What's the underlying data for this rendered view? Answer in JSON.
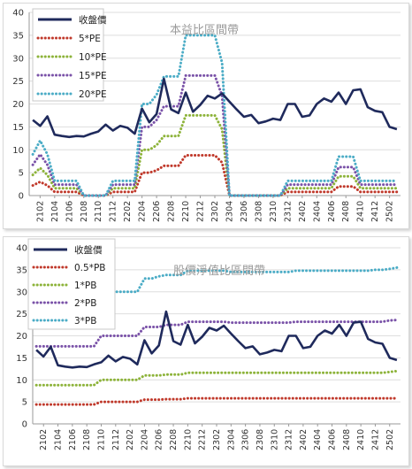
{
  "colors": {
    "close": "#1f2a5c",
    "band1": "#c0392b",
    "band2": "#8db33a",
    "band3": "#7a52a8",
    "band4": "#4bacc6",
    "grid": "#dedede",
    "axis": "#9a9a9a"
  },
  "chart_data": [
    {
      "type": "line",
      "title": "本益比區間帶",
      "xlabel": "",
      "ylabel": "",
      "ylim": [
        0,
        40
      ],
      "yticks": [
        0,
        5,
        10,
        15,
        20,
        25,
        30,
        35,
        40
      ],
      "xtick_labels": [
        "2102",
        "2104",
        "2106",
        "2108",
        "2110",
        "2112",
        "2202",
        "2204",
        "2206",
        "2208",
        "2210",
        "2212",
        "2302",
        "2304",
        "2306",
        "2308",
        "2310",
        "2312",
        "2402",
        "2404",
        "2406",
        "2408",
        "2410",
        "2412",
        "2502"
      ],
      "grid": true,
      "legend_position": "top-left",
      "x": [
        "2101",
        "2102",
        "2103",
        "2104",
        "2105",
        "2106",
        "2107",
        "2108",
        "2109",
        "2110",
        "2111",
        "2112",
        "2201",
        "2202",
        "2203",
        "2204",
        "2205",
        "2206",
        "2207",
        "2208",
        "2209",
        "2210",
        "2211",
        "2212",
        "2301",
        "2302",
        "2303",
        "2304",
        "2305",
        "2306",
        "2307",
        "2308",
        "2309",
        "2310",
        "2311",
        "2312",
        "2401",
        "2402",
        "2403",
        "2404",
        "2405",
        "2406",
        "2407",
        "2408",
        "2409",
        "2410",
        "2411",
        "2412",
        "2501",
        "2502",
        "2503"
      ],
      "series": [
        {
          "name": "收盤價",
          "style": "solid",
          "values": [
            16.5,
            15.2,
            17.3,
            13.3,
            13.0,
            12.8,
            13.0,
            12.9,
            13.5,
            14.0,
            15.5,
            14.2,
            15.2,
            14.8,
            13.5,
            19.0,
            16.0,
            17.8,
            25.5,
            18.8,
            18.0,
            22.5,
            18.3,
            19.8,
            21.8,
            21.2,
            22.3,
            20.5,
            18.8,
            17.2,
            17.6,
            15.8,
            16.2,
            16.8,
            16.5,
            20.0,
            20.0,
            17.2,
            17.5,
            20.0,
            21.2,
            20.5,
            22.5,
            20.0,
            23.0,
            23.2,
            19.3,
            18.5,
            18.2,
            15.0,
            14.5
          ]
        },
        {
          "name": "5*PE",
          "style": "dotted",
          "values": [
            2.2,
            3.0,
            2.2,
            0.8,
            0.8,
            0.8,
            0.8,
            0,
            0,
            0,
            0,
            0.8,
            0.8,
            0.8,
            0.8,
            5.0,
            5.0,
            5.5,
            6.5,
            6.5,
            6.5,
            8.8,
            8.8,
            8.8,
            8.8,
            8.8,
            7.2,
            0,
            0,
            0,
            0,
            0,
            0,
            0,
            0,
            0.8,
            0.8,
            0.8,
            0.8,
            0.8,
            0.8,
            0.8,
            2.0,
            2.0,
            2.0,
            0.8,
            0.8,
            0.8,
            0.8,
            0.8,
            0.8
          ]
        },
        {
          "name": "10*PE",
          "style": "dotted",
          "values": [
            4.5,
            6.0,
            4.5,
            1.6,
            1.6,
            1.6,
            1.6,
            0,
            0,
            0,
            0,
            1.6,
            1.6,
            1.6,
            1.6,
            10.0,
            10.0,
            11.0,
            13.0,
            13.0,
            13.0,
            17.5,
            17.5,
            17.5,
            17.5,
            17.5,
            14.5,
            0,
            0,
            0,
            0,
            0,
            0,
            0,
            0,
            1.6,
            1.6,
            1.6,
            1.6,
            1.6,
            1.6,
            1.6,
            4.2,
            4.2,
            4.2,
            1.6,
            1.6,
            1.6,
            1.6,
            1.6,
            1.6
          ]
        },
        {
          "name": "15*PE",
          "style": "dotted",
          "values": [
            6.7,
            9.0,
            6.7,
            2.4,
            2.4,
            2.4,
            2.4,
            0,
            0,
            0,
            0,
            2.4,
            2.4,
            2.4,
            2.4,
            15.0,
            15.0,
            16.5,
            19.5,
            19.5,
            19.5,
            26.2,
            26.2,
            26.2,
            26.2,
            26.2,
            21.8,
            0,
            0,
            0,
            0,
            0,
            0,
            0,
            0,
            2.4,
            2.4,
            2.4,
            2.4,
            2.4,
            2.4,
            2.4,
            6.2,
            6.2,
            6.2,
            2.4,
            2.4,
            2.4,
            2.4,
            2.4,
            2.4
          ]
        },
        {
          "name": "20*PE",
          "style": "dotted",
          "values": [
            9.0,
            12.0,
            9.0,
            3.2,
            3.2,
            3.2,
            3.2,
            0,
            0,
            0,
            0,
            3.2,
            3.2,
            3.2,
            3.2,
            20.0,
            20.0,
            22.0,
            26.0,
            26.0,
            26.0,
            35.0,
            35.0,
            35.0,
            35.0,
            35.0,
            29.0,
            0,
            0,
            0,
            0,
            0,
            0,
            0,
            0,
            3.2,
            3.2,
            3.2,
            3.2,
            3.2,
            3.2,
            3.2,
            8.5,
            8.5,
            8.5,
            3.2,
            3.2,
            3.2,
            3.2,
            3.2,
            3.2
          ]
        }
      ]
    },
    {
      "type": "line",
      "title": "股價淨值比區間帶",
      "xlabel": "",
      "ylabel": "",
      "ylim": [
        0,
        40
      ],
      "yticks": [
        0,
        5,
        10,
        15,
        20,
        25,
        30,
        35,
        40
      ],
      "xtick_labels": [
        "2102",
        "2104",
        "2106",
        "2108",
        "2110",
        "2112",
        "2202",
        "2204",
        "2206",
        "2208",
        "2210",
        "2212",
        "2302",
        "2304",
        "2306",
        "2308",
        "2310",
        "2312",
        "2402",
        "2404",
        "2406",
        "2408",
        "2410",
        "2412",
        "2502"
      ],
      "grid": true,
      "legend_position": "top-left",
      "x": [
        "2101",
        "2102",
        "2103",
        "2104",
        "2105",
        "2106",
        "2107",
        "2108",
        "2109",
        "2110",
        "2111",
        "2112",
        "2201",
        "2202",
        "2203",
        "2204",
        "2205",
        "2206",
        "2207",
        "2208",
        "2209",
        "2210",
        "2211",
        "2212",
        "2301",
        "2302",
        "2303",
        "2304",
        "2305",
        "2306",
        "2307",
        "2308",
        "2309",
        "2310",
        "2311",
        "2312",
        "2401",
        "2402",
        "2403",
        "2404",
        "2405",
        "2406",
        "2407",
        "2408",
        "2409",
        "2410",
        "2411",
        "2412",
        "2501",
        "2502",
        "2503"
      ],
      "series": [
        {
          "name": "收盤價",
          "style": "solid",
          "values": [
            16.8,
            15.3,
            17.5,
            13.3,
            13.0,
            12.8,
            13.0,
            12.9,
            13.5,
            14.0,
            15.5,
            14.2,
            15.2,
            14.8,
            13.5,
            19.0,
            16.0,
            17.8,
            25.5,
            18.8,
            18.0,
            22.5,
            18.3,
            19.8,
            21.8,
            21.2,
            22.3,
            20.5,
            18.8,
            17.2,
            17.6,
            15.8,
            16.2,
            16.8,
            16.5,
            20.0,
            20.0,
            17.2,
            17.5,
            20.0,
            21.2,
            20.5,
            22.5,
            20.0,
            23.0,
            23.2,
            19.3,
            18.5,
            18.2,
            15.0,
            14.5
          ]
        },
        {
          "name": "0.5*PB",
          "style": "dotted",
          "values": [
            4.4,
            4.4,
            4.4,
            4.4,
            4.4,
            4.4,
            4.4,
            4.4,
            4.4,
            5.0,
            5.0,
            5.0,
            5.0,
            5.0,
            5.0,
            5.5,
            5.5,
            5.5,
            5.6,
            5.6,
            5.6,
            5.8,
            5.8,
            5.8,
            5.8,
            5.8,
            5.8,
            5.8,
            5.8,
            5.8,
            5.8,
            5.8,
            5.8,
            5.8,
            5.8,
            5.8,
            5.8,
            5.8,
            5.8,
            5.8,
            5.8,
            5.8,
            5.8,
            5.8,
            5.8,
            5.8,
            5.8,
            5.8,
            5.8,
            5.8,
            5.8
          ]
        },
        {
          "name": "1*PB",
          "style": "dotted",
          "values": [
            8.8,
            8.8,
            8.8,
            8.8,
            8.8,
            8.8,
            8.8,
            8.8,
            8.8,
            10.0,
            10.0,
            10.0,
            10.0,
            10.0,
            10.0,
            11.0,
            11.0,
            11.0,
            11.2,
            11.2,
            11.2,
            11.6,
            11.6,
            11.6,
            11.6,
            11.6,
            11.6,
            11.6,
            11.6,
            11.6,
            11.6,
            11.6,
            11.6,
            11.6,
            11.6,
            11.6,
            11.6,
            11.6,
            11.6,
            11.6,
            11.6,
            11.6,
            11.6,
            11.6,
            11.6,
            11.6,
            11.6,
            11.6,
            11.6,
            11.8,
            12.0
          ]
        },
        {
          "name": "2*PB",
          "style": "dotted",
          "values": [
            17.6,
            17.6,
            17.6,
            17.6,
            17.6,
            17.6,
            17.6,
            17.6,
            17.6,
            20.0,
            20.0,
            20.0,
            20.0,
            20.0,
            20.0,
            22.0,
            22.0,
            22.0,
            22.5,
            22.5,
            22.5,
            23.2,
            23.2,
            23.2,
            23.2,
            23.2,
            23.2,
            23.0,
            23.0,
            23.0,
            23.0,
            23.0,
            23.0,
            23.0,
            23.0,
            23.0,
            23.2,
            23.2,
            23.2,
            23.2,
            23.2,
            23.2,
            23.2,
            23.2,
            23.2,
            23.2,
            23.2,
            23.2,
            23.2,
            23.5,
            23.6
          ]
        },
        {
          "name": "3*PB",
          "style": "dotted",
          "values": [
            26.4,
            26.4,
            26.4,
            26.4,
            26.4,
            26.4,
            26.4,
            26.4,
            26.4,
            30.0,
            30.0,
            30.0,
            30.0,
            30.0,
            30.0,
            33.0,
            33.0,
            33.5,
            33.8,
            33.8,
            33.8,
            34.8,
            34.8,
            34.8,
            34.8,
            34.8,
            34.8,
            34.5,
            34.5,
            34.5,
            34.5,
            34.5,
            34.5,
            34.5,
            34.5,
            34.5,
            34.8,
            34.8,
            34.8,
            34.8,
            34.8,
            34.8,
            34.8,
            34.8,
            34.8,
            34.8,
            34.8,
            35.0,
            35.0,
            35.2,
            35.5
          ]
        }
      ]
    }
  ]
}
